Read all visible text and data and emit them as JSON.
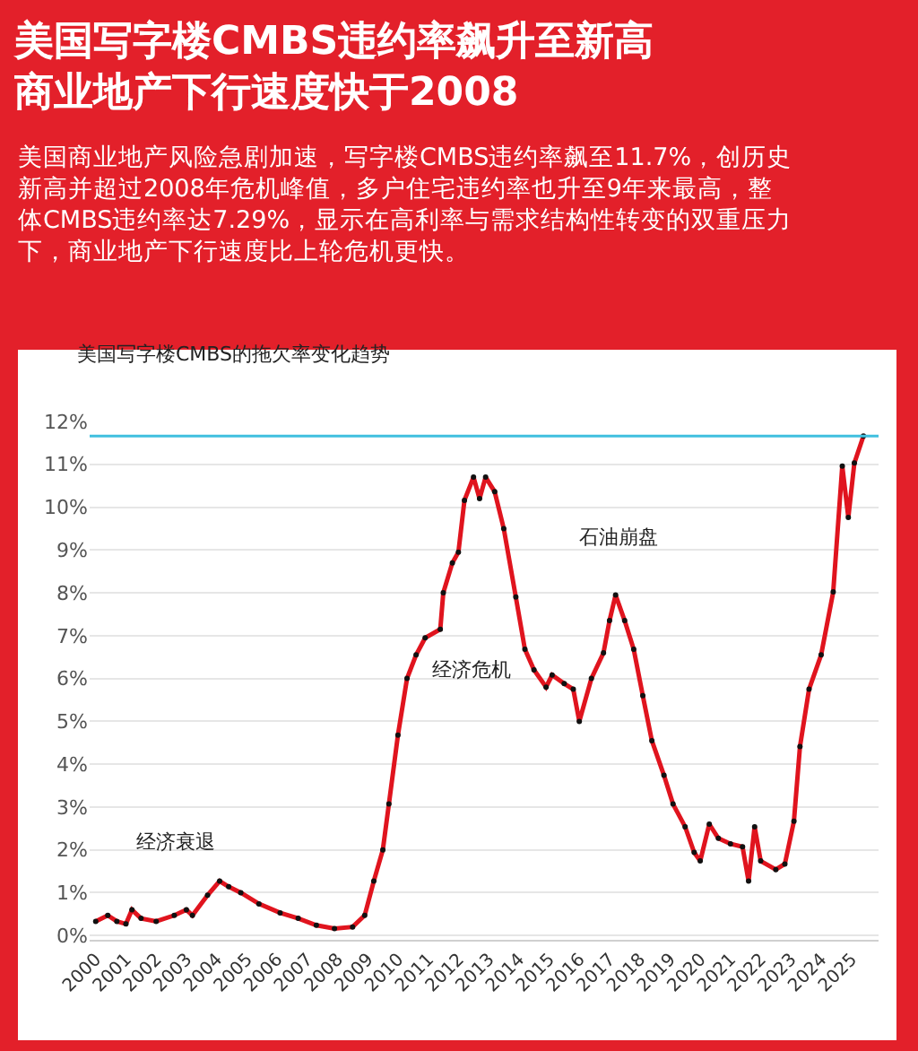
{
  "chart_data": {
    "type": "line",
    "title": "美国写字楼CMBS违约率飙升至新高商业地产下行速度快于2008",
    "subtitle": "美国商业地产风险急剧加速，写字楼CMBS违约率飙至11.7%，创历史新高并超过2008年危机峰值，多户住宅违约率也升至9年来最高，整体CMBS违约率达7.29%，显示在高利率与需求结构性转变的双重压力下，商业地产下行速度比上轮危机更快。",
    "annotations": [
      "美国写字楼CMBS的拖欠率变化趋势",
      "经济衰退",
      "经济危机",
      "石油崩盘"
    ],
    "x": [
      2000,
      2000.4,
      2000.7,
      2001,
      2001.2,
      2001.5,
      2002,
      2002.6,
      2003,
      2003.2,
      2003.7,
      2004.1,
      2004.4,
      2004.8,
      2005.4,
      2006.1,
      2006.7,
      2007.3,
      2007.9,
      2008.5,
      2008.9,
      2009.2,
      2009.5,
      2009.7,
      2010.0,
      2010.3,
      2010.6,
      2010.9,
      2011.4,
      2011.5,
      2011.8,
      2012.0,
      2012.2,
      2012.5,
      2012.7,
      2012.9,
      2013.2,
      2013.5,
      2013.9,
      2014.2,
      2014.5,
      2014.9,
      2015.1,
      2015.5,
      2015.8,
      2016.0,
      2016.4,
      2016.8,
      2017.0,
      2017.2,
      2017.5,
      2017.8,
      2018.1,
      2018.4,
      2018.8,
      2019.1,
      2019.5,
      2019.8,
      2020.0,
      2020.3,
      2020.6,
      2021.0,
      2021.4,
      2021.6,
      2021.8,
      2022.0,
      2022.5,
      2022.8,
      2023.1,
      2023.3,
      2023.6,
      2024.0,
      2024.4,
      2024.7,
      2024.9,
      2025.1,
      2025.4
    ],
    "series": [
      {
        "color": "#e0141e",
        "values": [
          0.33,
          0.47,
          0.33,
          0.27,
          0.6,
          0.4,
          0.33,
          0.47,
          0.6,
          0.47,
          0.94,
          1.27,
          1.14,
          1.0,
          0.74,
          0.53,
          0.4,
          0.24,
          0.16,
          0.2,
          0.47,
          1.27,
          2.0,
          3.07,
          4.68,
          6.0,
          6.55,
          6.95,
          7.15,
          8.0,
          8.7,
          8.95,
          10.16,
          10.7,
          10.2,
          10.7,
          10.36,
          9.5,
          7.9,
          6.68,
          6.2,
          5.8,
          6.08,
          5.88,
          5.75,
          5.0,
          6.0,
          6.6,
          7.35,
          7.95,
          7.35,
          6.68,
          5.6,
          4.55,
          3.74,
          3.07,
          2.54,
          1.94,
          1.74,
          2.6,
          2.27,
          2.14,
          2.07,
          1.27,
          2.54,
          1.74,
          1.54,
          1.67,
          2.67,
          4.41,
          5.75,
          6.55,
          8.02,
          10.96,
          9.76,
          11.03,
          11.66
        ]
      }
    ],
    "xlim": [
      1999.8,
      2025.9
    ],
    "xticks": [
      2000,
      2001,
      2002,
      2003,
      2004,
      2005,
      2006,
      2007,
      2008,
      2009,
      2010,
      2011,
      2012,
      2013,
      2014,
      2015,
      2016,
      2017,
      2018,
      2019,
      2020,
      2021,
      2022,
      2023,
      2024,
      2025
    ],
    "ylim": [
      -0.1,
      12
    ],
    "yticks": [
      {
        "value": 0,
        "label": "0%"
      },
      {
        "value": 1,
        "label": "1%"
      },
      {
        "value": 2,
        "label": "2%"
      },
      {
        "value": 3,
        "label": "3%"
      },
      {
        "value": 4,
        "label": "4%"
      },
      {
        "value": 5,
        "label": "5%"
      },
      {
        "value": 6,
        "label": "6%"
      },
      {
        "value": 7,
        "label": "7%"
      },
      {
        "value": 8,
        "label": "8%"
      },
      {
        "value": 9,
        "label": "9%"
      },
      {
        "value": 10,
        "label": "10%"
      },
      {
        "value": 11,
        "label": "11%"
      },
      {
        "value": 12,
        "label": "12%"
      }
    ],
    "ref_lines": [
      {
        "axis": "y",
        "value": 11.66,
        "color": "#3fbfdf"
      }
    ],
    "grid": "y",
    "legend": false,
    "marker": "circle",
    "line_style": "solid"
  }
}
